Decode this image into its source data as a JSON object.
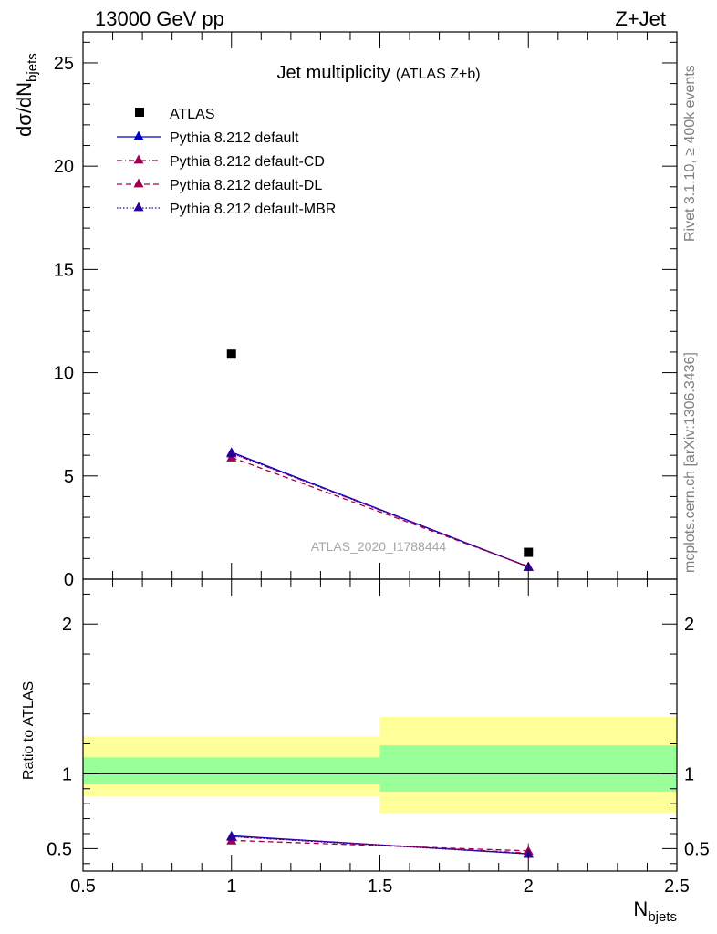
{
  "header": {
    "energy": "13000 GeV pp",
    "process": "Z+Jet"
  },
  "side_labels": {
    "rivet": "Rivet 3.1.10, ≥ 400k events",
    "mcplots": "mcplots.cern.ch [arXiv:1306.3436]"
  },
  "colors": {
    "atlas": "#000000",
    "default": "#0000cc",
    "cd": "#a0004f",
    "dl": "#a0004f",
    "mbr": "#2a0099",
    "band_stat": "#99ff99",
    "band_total": "#ffff99",
    "watermark": "#a6a6a6"
  },
  "chart_data": [
    {
      "type": "scatter",
      "title": "Jet multiplicity",
      "subtitle": "(ATLAS Z+b)",
      "xlabel": "N_bjets",
      "ylabel": "dσ/dN_bjets",
      "watermark": "ATLAS_2020_I1788444",
      "xlim": [
        0.5,
        2.5
      ],
      "ylim": [
        0,
        26.5
      ],
      "yticks": [
        0,
        5,
        10,
        15,
        20,
        25
      ],
      "yticklabels": [
        "0",
        "5",
        "10",
        "15",
        "20",
        "25"
      ],
      "legend_position": "top-left",
      "series": [
        {
          "name": "ATLAS",
          "marker": "square",
          "x": [
            1,
            2
          ],
          "y": [
            10.9,
            1.3
          ]
        },
        {
          "name": "Pythia 8.212 default",
          "line": "solid",
          "marker": "triangle",
          "x": [
            1,
            2
          ],
          "y": [
            6.15,
            0.6
          ]
        },
        {
          "name": "Pythia 8.212 default-CD",
          "line": "dashdot",
          "marker": "triangle",
          "x": [
            1,
            2
          ],
          "y": [
            6.1,
            0.6
          ]
        },
        {
          "name": "Pythia 8.212 default-DL",
          "line": "dashed",
          "marker": "triangle",
          "x": [
            1,
            2
          ],
          "y": [
            5.9,
            0.62
          ]
        },
        {
          "name": "Pythia 8.212 default-MBR",
          "line": "dotted",
          "marker": "triangle",
          "x": [
            1,
            2
          ],
          "y": [
            6.1,
            0.6
          ]
        }
      ]
    },
    {
      "type": "scatter",
      "ylabel": "Ratio to ATLAS",
      "xlabel": "N_bjets",
      "xlim": [
        0.5,
        2.5
      ],
      "ylim": [
        0.35,
        2.3
      ],
      "xticks": [
        0.5,
        1,
        1.5,
        2,
        2.5
      ],
      "xticklabels": [
        "0.5",
        "1",
        "1.5",
        "2",
        "2.5"
      ],
      "yticks": [
        0.5,
        1,
        2
      ],
      "yticklabels": [
        "0.5",
        "1",
        "2"
      ],
      "bands": [
        {
          "x": [
            0.5,
            1.5
          ],
          "stat": [
            0.93,
            1.11
          ],
          "total": [
            0.85,
            1.25
          ]
        },
        {
          "x": [
            1.5,
            2.5
          ],
          "stat": [
            0.88,
            1.19
          ],
          "total": [
            0.74,
            1.38
          ]
        }
      ],
      "series": [
        {
          "name": "Pythia 8.212 default",
          "x": [
            1,
            2
          ],
          "y": [
            0.585,
            0.465
          ],
          "err": [
            0.015,
            0.03
          ]
        },
        {
          "name": "Pythia 8.212 default-CD",
          "x": [
            1,
            2
          ],
          "y": [
            0.58,
            0.47
          ],
          "err": [
            0.015,
            0.03
          ]
        },
        {
          "name": "Pythia 8.212 default-DL",
          "x": [
            1,
            2
          ],
          "y": [
            0.555,
            0.485
          ],
          "err": [
            0.015,
            0.05
          ]
        },
        {
          "name": "Pythia 8.212 default-MBR",
          "x": [
            1,
            2
          ],
          "y": [
            0.58,
            0.465
          ],
          "err": [
            0.015,
            0.03
          ]
        }
      ]
    }
  ]
}
